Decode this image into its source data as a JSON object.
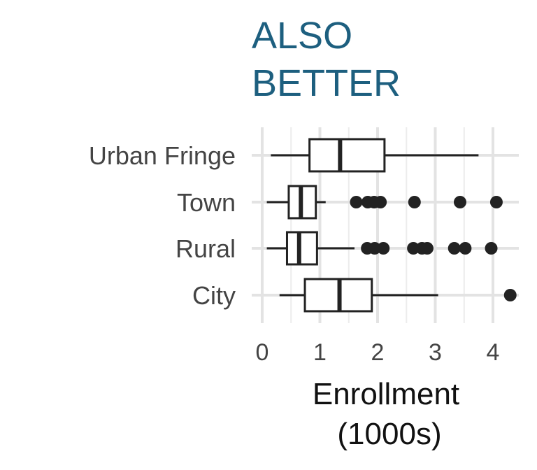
{
  "chart_data": {
    "type": "boxplot",
    "orientation": "horizontal",
    "title_lines": [
      "ALSO",
      "BETTER"
    ],
    "title_color": "#1d5f7f",
    "xlabel_lines": [
      "Enrollment",
      "(1000s)"
    ],
    "ylabel": "",
    "xlim": [
      -0.1,
      4.4
    ],
    "xticks": [
      0,
      1,
      2,
      3,
      4
    ],
    "grid": true,
    "categories": [
      "Urban Fringe",
      "Town",
      "Rural",
      "City"
    ],
    "boxes": [
      {
        "category": "Urban Fringe",
        "whisker_low": 0.15,
        "q1": 0.82,
        "median": 1.35,
        "q3": 2.12,
        "whisker_high": 3.75,
        "outliers": []
      },
      {
        "category": "Town",
        "whisker_low": 0.08,
        "q1": 0.46,
        "median": 0.67,
        "q3": 0.93,
        "whisker_high": 1.1,
        "outliers": [
          1.63,
          1.83,
          1.94,
          2.05,
          2.64,
          3.43,
          4.06
        ]
      },
      {
        "category": "Rural",
        "whisker_low": 0.08,
        "q1": 0.43,
        "median": 0.64,
        "q3": 0.95,
        "whisker_high": 1.6,
        "outliers": [
          1.82,
          1.95,
          2.1,
          2.62,
          2.77,
          2.86,
          3.33,
          3.52,
          3.97
        ]
      },
      {
        "category": "City",
        "whisker_low": 0.3,
        "q1": 0.74,
        "median": 1.34,
        "q3": 1.9,
        "whisker_high": 3.05,
        "outliers": [
          4.3
        ]
      }
    ],
    "box_color": "#222222"
  }
}
